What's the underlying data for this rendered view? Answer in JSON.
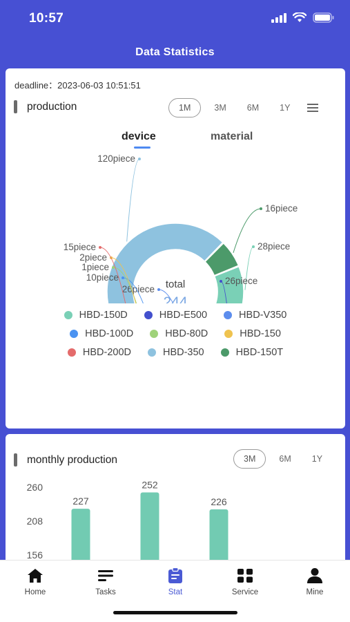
{
  "status_bar": {
    "time": "10:57"
  },
  "header": {
    "title": "Data Statistics"
  },
  "production": {
    "deadline": "deadline：2023-06-03 10:51:51",
    "title": "production",
    "periods": [
      "1M",
      "3M",
      "6M",
      "1Y"
    ],
    "active_period": "1M",
    "tabs": [
      "device",
      "material"
    ],
    "active_tab": "device",
    "total_label": "total",
    "total_value": "244",
    "chart_data": {
      "type": "pie",
      "title": "",
      "categories": [
        "HBD-150D",
        "HBD-E500",
        "HBD-V350",
        "HBD-100D",
        "HBD-80D",
        "HBD-150",
        "HBD-200D",
        "HBD-350",
        "HBD-150T"
      ],
      "values": [
        28,
        26,
        26,
        10,
        1,
        2,
        15,
        120,
        16
      ],
      "unit": "piece",
      "colors": [
        "#7ad0b6",
        "#4350cd",
        "#5c8ded",
        "#4b93f1",
        "#9fd27a",
        "#efc34f",
        "#e46b6b",
        "#8ec2df",
        "#4c9a6a"
      ],
      "legend": "bottom"
    },
    "slice_labels": [
      "28piece",
      "26piece",
      "26piece",
      "10piece",
      "1piece",
      "2piece",
      "15piece",
      "120piece",
      "16piece"
    ]
  },
  "monthly": {
    "title": "monthly production",
    "periods": [
      "3M",
      "6M",
      "1Y"
    ],
    "active_period": "3M",
    "chart_data": {
      "type": "bar",
      "categories": [
        "",
        "",
        ""
      ],
      "values": [
        227,
        252,
        226
      ],
      "yticks": [
        "260",
        "208",
        "156"
      ],
      "ylim": [
        156,
        260
      ],
      "color": "#72cbb2"
    }
  },
  "tabbar": {
    "items": [
      {
        "label": "Home",
        "icon": "home-icon"
      },
      {
        "label": "Tasks",
        "icon": "tasks-icon"
      },
      {
        "label": "Stat",
        "icon": "stat-icon"
      },
      {
        "label": "Service",
        "icon": "service-icon"
      },
      {
        "label": "Mine",
        "icon": "person-icon"
      }
    ],
    "active": "Stat"
  }
}
